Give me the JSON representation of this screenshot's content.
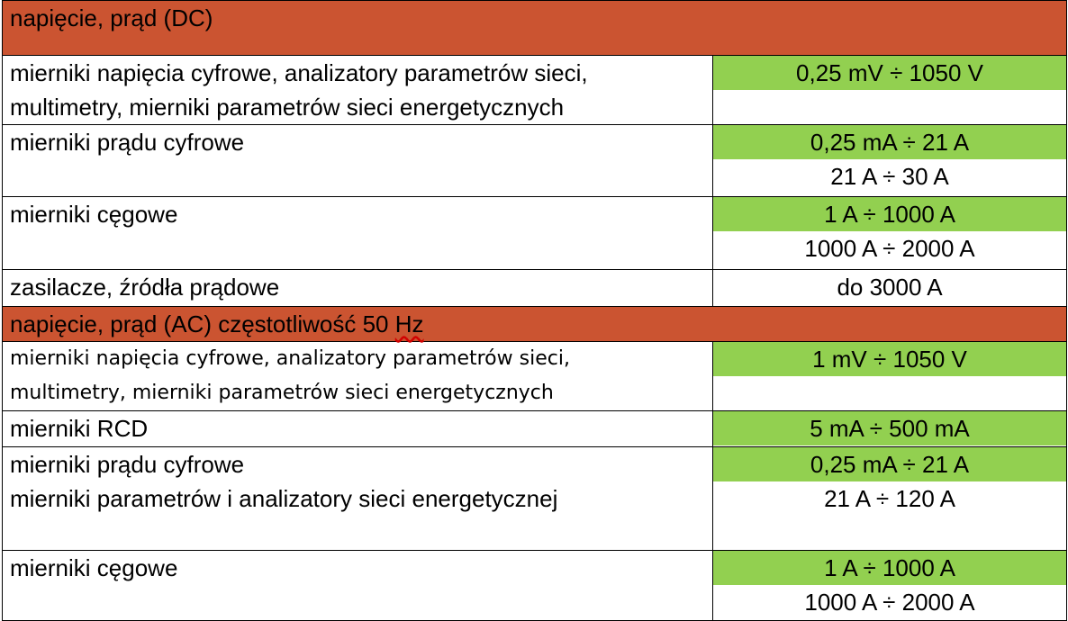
{
  "colors": {
    "section_header": "#cb5431",
    "highlight": "#92d050",
    "border": "#000000"
  },
  "sections": [
    {
      "header": "napięcie, prąd (DC)",
      "rows": [
        {
          "desc_lines": [
            "mierniki napięcia cyfrowe, analizatory parametrów sieci,",
            "multimetry, mierniki parametrów sieci energetycznych"
          ],
          "values": [
            "0,25 mV ÷ 1050 V",
            ""
          ]
        },
        {
          "desc_lines": [
            "mierniki prądu cyfrowe"
          ],
          "values": [
            "0,25 mA ÷ 21 A",
            "21 A ÷ 30 A"
          ]
        },
        {
          "desc_lines": [
            "mierniki cęgowe"
          ],
          "values": [
            "1 A ÷ 1000 A",
            "1000 A ÷ 2000 A"
          ]
        },
        {
          "desc_lines": [
            "zasilacze, źródła prądowe"
          ],
          "values": [
            "do 3000 A"
          ]
        }
      ]
    },
    {
      "header_prefix": "napięcie, prąd (AC) częstotliwość 50 ",
      "header_unit": "Hz",
      "rows": [
        {
          "desc_lines": [
            "mierniki napięcia cyfrowe, analizatory parametrów sieci,",
            "multimetry, mierniki parametrów sieci energetycznych"
          ],
          "values": [
            "1 mV ÷ 1050 V",
            ""
          ]
        },
        {
          "desc_lines": [
            "mierniki RCD"
          ],
          "values": [
            "5 mA ÷ 500 mA"
          ]
        },
        {
          "desc_lines": [
            "mierniki prądu cyfrowe",
            "mierniki parametrów i analizatory sieci energetycznej"
          ],
          "values": [
            "0,25 mA ÷ 21 A",
            "21 A ÷ 120 A"
          ]
        },
        {
          "desc_lines": [
            "mierniki cęgowe"
          ],
          "values": [
            "1 A ÷ 1000 A",
            "1000 A ÷ 2000 A"
          ]
        }
      ]
    }
  ]
}
